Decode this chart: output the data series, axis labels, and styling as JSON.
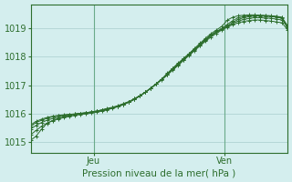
{
  "xlabel": "Pression niveau de la mer( hPa )",
  "background_color": "#d4eeee",
  "grid_color": "#a8cece",
  "line_color": "#2d6e2d",
  "ylim": [
    1014.6,
    1019.85
  ],
  "xlim": [
    0,
    47
  ],
  "xtick_positions": [
    11.5,
    35.5
  ],
  "xtick_labels": [
    "Jeu",
    "Ven"
  ],
  "ytick_positions": [
    1015,
    1016,
    1017,
    1018,
    1019
  ],
  "ytick_labels": [
    "1015",
    "1016",
    "1017",
    "1018",
    "1019"
  ],
  "vline_positions": [
    11.5,
    35.5
  ],
  "lines": [
    [
      1015.05,
      1015.2,
      1015.45,
      1015.65,
      1015.75,
      1015.82,
      1015.88,
      1015.93,
      1015.97,
      1016.0,
      1016.02,
      1016.05,
      1016.08,
      1016.12,
      1016.18,
      1016.22,
      1016.28,
      1016.35,
      1016.42,
      1016.52,
      1016.63,
      1016.75,
      1016.88,
      1017.05,
      1017.22,
      1017.42,
      1017.6,
      1017.78,
      1017.95,
      1018.12,
      1018.3,
      1018.48,
      1018.66,
      1018.82,
      1018.95,
      1019.08,
      1019.3,
      1019.4,
      1019.45,
      1019.47,
      1019.48,
      1019.48,
      1019.47,
      1019.46,
      1019.45,
      1019.43,
      1019.4,
      1019.0
    ],
    [
      1015.6,
      1015.72,
      1015.8,
      1015.86,
      1015.9,
      1015.93,
      1015.95,
      1015.97,
      1015.98,
      1016.0,
      1016.02,
      1016.05,
      1016.08,
      1016.12,
      1016.16,
      1016.2,
      1016.25,
      1016.32,
      1016.4,
      1016.5,
      1016.62,
      1016.75,
      1016.9,
      1017.05,
      1017.22,
      1017.4,
      1017.58,
      1017.76,
      1017.94,
      1018.1,
      1018.28,
      1018.45,
      1018.62,
      1018.78,
      1018.9,
      1019.0,
      1019.15,
      1019.28,
      1019.38,
      1019.42,
      1019.45,
      1019.46,
      1019.46,
      1019.45,
      1019.44,
      1019.42,
      1019.38,
      1019.1
    ],
    [
      1015.55,
      1015.68,
      1015.76,
      1015.83,
      1015.88,
      1015.91,
      1015.94,
      1015.96,
      1015.98,
      1016.0,
      1016.02,
      1016.05,
      1016.08,
      1016.12,
      1016.16,
      1016.2,
      1016.25,
      1016.32,
      1016.4,
      1016.5,
      1016.62,
      1016.75,
      1016.9,
      1017.05,
      1017.2,
      1017.38,
      1017.56,
      1017.74,
      1017.92,
      1018.08,
      1018.26,
      1018.43,
      1018.6,
      1018.76,
      1018.88,
      1018.98,
      1019.1,
      1019.22,
      1019.32,
      1019.38,
      1019.42,
      1019.44,
      1019.44,
      1019.43,
      1019.42,
      1019.4,
      1019.36,
      1019.08
    ],
    [
      1015.45,
      1015.58,
      1015.68,
      1015.76,
      1015.82,
      1015.87,
      1015.91,
      1015.94,
      1015.97,
      1015.99,
      1016.01,
      1016.04,
      1016.07,
      1016.11,
      1016.15,
      1016.2,
      1016.26,
      1016.34,
      1016.42,
      1016.52,
      1016.63,
      1016.76,
      1016.9,
      1017.05,
      1017.2,
      1017.37,
      1017.55,
      1017.72,
      1017.9,
      1018.07,
      1018.24,
      1018.41,
      1018.58,
      1018.74,
      1018.87,
      1018.98,
      1019.08,
      1019.18,
      1019.26,
      1019.32,
      1019.36,
      1019.38,
      1019.38,
      1019.37,
      1019.36,
      1019.33,
      1019.3,
      1019.05
    ],
    [
      1015.25,
      1015.4,
      1015.55,
      1015.66,
      1015.74,
      1015.8,
      1015.85,
      1015.89,
      1015.93,
      1015.96,
      1015.98,
      1016.01,
      1016.04,
      1016.08,
      1016.13,
      1016.18,
      1016.24,
      1016.31,
      1016.4,
      1016.5,
      1016.62,
      1016.75,
      1016.89,
      1017.04,
      1017.19,
      1017.36,
      1017.53,
      1017.7,
      1017.88,
      1018.05,
      1018.22,
      1018.39,
      1018.55,
      1018.7,
      1018.83,
      1018.95,
      1019.05,
      1019.14,
      1019.2,
      1019.25,
      1019.28,
      1019.3,
      1019.3,
      1019.28,
      1019.26,
      1019.23,
      1019.2,
      1018.95
    ]
  ]
}
